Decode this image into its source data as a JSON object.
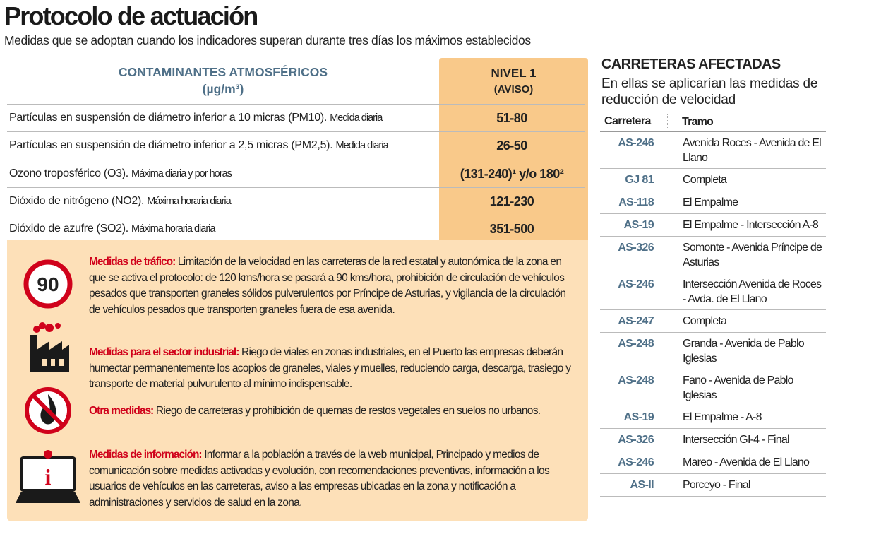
{
  "header": {
    "title": "Protocolo de actuación",
    "subtitle": "Medidas que se adoptan cuando los indicadores superan durante tres días los máximos establecidos"
  },
  "pollutants": {
    "header_left": [
      "CONTAMINANTES ATMOSFÉRICOS",
      "(µg/m³)"
    ],
    "header_right": [
      "NIVEL 1",
      "(AVISO)"
    ],
    "rows": [
      [
        "Partículas en suspensión de diámetro inferior a 10 micras (PM10).",
        "Medida diaria",
        "51-80"
      ],
      [
        "Partículas en suspensión de diámetro inferior a 2,5 micras (PM2,5).",
        "Medida diaria",
        "26-50"
      ],
      [
        "Ozono troposférico (O3).",
        "Máxima diaria y por horas",
        "(131-240)¹ y/o 180²"
      ],
      [
        "Dióxido de nitrógeno (NO2).",
        "Máxima horaria diaria",
        "121-230"
      ],
      [
        "Dióxido de azufre (SO2).",
        "Máxima horaria diaria",
        "351-500"
      ]
    ]
  },
  "measures": [
    {
      "title": "Medidas de tráfico:",
      "text": "Limitación de la velocidad en las carreteras de la red estatal y autonómica de la zona en que se activa el protocolo: de 120 kms/hora se pasará a 90 kms/hora, prohibición de circulación de vehículos pesados que transporten graneles sólidos pulverulentos por Príncipe de Asturias, y vigilancia de la circulación de vehículos pesados que transporten graneles fuera de esa avenida.",
      "icon": "90"
    },
    {
      "title": "Medidas para el sector industrial:",
      "text": "Riego de viales en zonas industriales, en el Puerto las empresas deberán humectar permanentemente los acopios de graneles, viales y muelles, reduciendo carga, descarga, trasiego y transporte de material pulvurulento al mínimo indispensable."
    },
    {
      "title": "Otra medidas:",
      "text": "Riego de carreteras y prohibición de quemas de restos vegetales en suelos no urbanos."
    },
    {
      "title": "Medidas de información:",
      "text": "Informar a la población a través de la web municipal, Principado y medios de comunicación sobre medidas activadas y evolución, con recomendaciones preventivas, información a los usuarios de vehículos en las carreteras, aviso a las empresas ubicadas en la zona y notificación a administraciones y servicios de salud en la zona.",
      "icon": "i"
    }
  ],
  "roads": {
    "title": "CARRETERAS AFECTADAS",
    "subtitle": "En ellas se aplicarían las medidas de reducción de velocidad",
    "headers": [
      "Carretera",
      "Tramo"
    ],
    "rows": [
      [
        "AS-246",
        "Avenida Roces - Avenida de El Llano"
      ],
      [
        "GJ 81",
        "Completa"
      ],
      [
        "AS-118",
        "El Empalme"
      ],
      [
        "AS-19",
        "El Empalme - Intersección A-8"
      ],
      [
        "AS-326",
        "Somonte - Avenida Príncipe de Asturias"
      ],
      [
        "AS-246",
        "Intersección Avenida de Roces - Avda. de El Llano"
      ],
      [
        "AS-247",
        "Completa"
      ],
      [
        "AS-248",
        "Granda - Avenida de Pablo Iglesias"
      ],
      [
        "AS-248",
        "Fano - Avenida de Pablo Iglesias"
      ],
      [
        "AS-19",
        "El Empalme - A-8"
      ],
      [
        "AS-326",
        "Intersección GI-4 - Final"
      ],
      [
        "AS-246",
        "Mareo - Avenida de El Llano"
      ],
      [
        "AS-II",
        "Porceyo - Final"
      ]
    ]
  }
}
